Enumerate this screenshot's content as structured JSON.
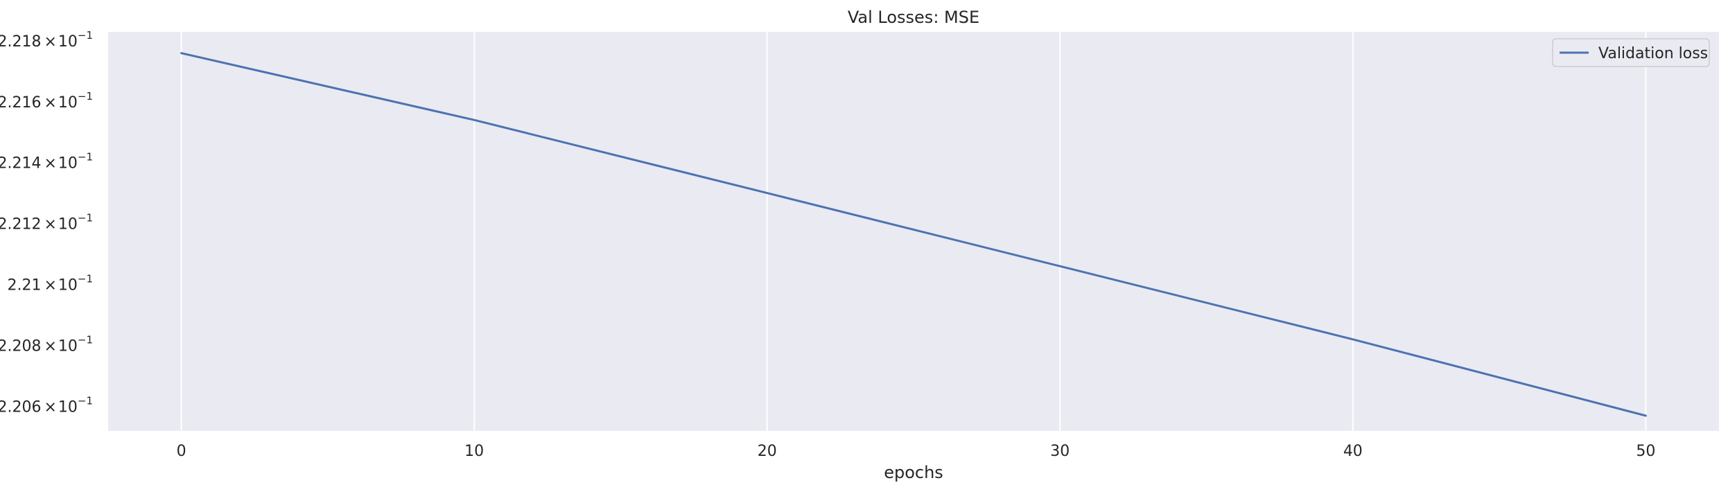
{
  "chart_data": {
    "type": "line",
    "title": "Val Losses:  MSE",
    "xlabel": "epochs",
    "ylabel": "",
    "x_scale": "linear",
    "y_scale": "log",
    "xlim": [
      -2.5,
      52.5
    ],
    "ylim": [
      0.22052,
      0.22183
    ],
    "x_ticks": [
      0,
      10,
      20,
      30,
      40,
      50
    ],
    "y_ticks": [
      {
        "value": 0.2206,
        "mantissa": "2.206",
        "base": "10",
        "exponent": "−1"
      },
      {
        "value": 0.2208,
        "mantissa": "2.208",
        "base": "10",
        "exponent": "−1"
      },
      {
        "value": 0.221,
        "mantissa": "2.21",
        "base": "10",
        "exponent": "−1"
      },
      {
        "value": 0.2212,
        "mantissa": "2.212",
        "base": "10",
        "exponent": "−1"
      },
      {
        "value": 0.2214,
        "mantissa": "2.214",
        "base": "10",
        "exponent": "−1"
      },
      {
        "value": 0.2216,
        "mantissa": "2.216",
        "base": "10",
        "exponent": "−1"
      },
      {
        "value": 0.2218,
        "mantissa": "2.218",
        "base": "10",
        "exponent": "−1"
      }
    ],
    "grid": true,
    "legend_position": "top-right",
    "colors": {
      "background": "#eaeaf2",
      "grid": "#ffffff",
      "line": "#4c72b0"
    },
    "series": [
      {
        "name": "Validation loss",
        "x": [
          0,
          10,
          20,
          30,
          40,
          50
        ],
        "y": [
          0.22176,
          0.22154,
          0.2213,
          0.22106,
          0.22082,
          0.22057
        ]
      }
    ]
  }
}
